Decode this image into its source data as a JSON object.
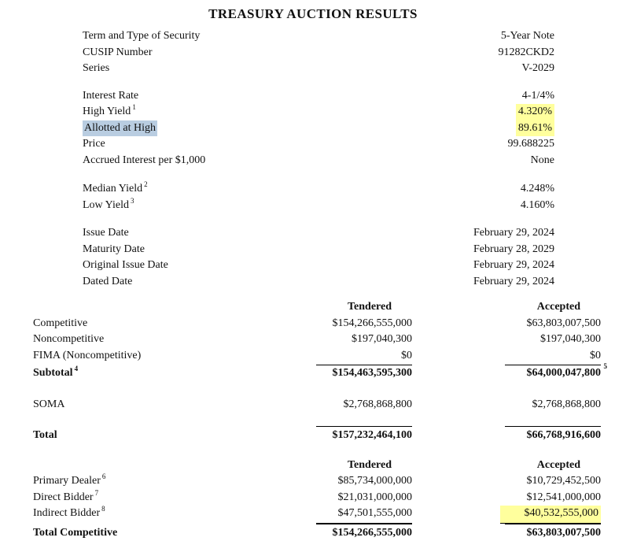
{
  "title": "TREASURY AUCTION RESULTS",
  "colors": {
    "highlight_yellow": "#ffff9d",
    "highlight_blue": "#b9cde1",
    "text": "#111111",
    "background": "#ffffff"
  },
  "security": {
    "rows": [
      {
        "label": "Term and Type of Security",
        "value": "5-Year Note"
      },
      {
        "label": "CUSIP Number",
        "value": "91282CKD2"
      },
      {
        "label": "Series",
        "value": "V-2029"
      }
    ]
  },
  "rates": {
    "rows": [
      {
        "label": "Interest Rate",
        "value": "4-1/4%"
      },
      {
        "label": "High Yield",
        "sup": "1",
        "value": "4.320%"
      },
      {
        "label": "Allotted at High",
        "value": "89.61%"
      },
      {
        "label": "Price",
        "value": "99.688225"
      },
      {
        "label": "Accrued Interest per $1,000",
        "value": "None"
      }
    ]
  },
  "yields": {
    "rows": [
      {
        "label": "Median Yield",
        "sup": "2",
        "value": "4.248%"
      },
      {
        "label": "Low Yield",
        "sup": "3",
        "value": "4.160%"
      }
    ]
  },
  "dates": {
    "rows": [
      {
        "label": "Issue Date",
        "value": "February 29, 2024"
      },
      {
        "label": "Maturity Date",
        "value": "February 28, 2029"
      },
      {
        "label": "Original Issue Date",
        "value": "February 29, 2024"
      },
      {
        "label": "Dated Date",
        "value": "February 29, 2024"
      }
    ]
  },
  "allocation_table": {
    "headers": {
      "tendered": "Tendered",
      "accepted": "Accepted"
    },
    "rows": [
      {
        "label": "Competitive",
        "tendered": "$154,266,555,000",
        "accepted": "$63,803,007,500"
      },
      {
        "label": "Noncompetitive",
        "tendered": "$197,040,300",
        "accepted": "$197,040,300"
      },
      {
        "label": "FIMA (Noncompetitive)",
        "tendered": "$0",
        "accepted": "$0"
      },
      {
        "label": "Subtotal",
        "sup": "4",
        "tendered": "$154,463,595,300",
        "accepted": "$64,000,047,800",
        "accepted_sup": "5"
      },
      {
        "label": "SOMA",
        "tendered": "$2,768,868,800",
        "accepted": "$2,768,868,800"
      },
      {
        "label": "Total",
        "tendered": "$157,232,464,100",
        "accepted": "$66,768,916,600"
      }
    ]
  },
  "bidder_table": {
    "headers": {
      "tendered": "Tendered",
      "accepted": "Accepted"
    },
    "rows": [
      {
        "label": "Primary Dealer",
        "sup": "6",
        "tendered": "$85,734,000,000",
        "accepted": "$10,729,452,500"
      },
      {
        "label": "Direct Bidder",
        "sup": "7",
        "tendered": "$21,031,000,000",
        "accepted": "$12,541,000,000"
      },
      {
        "label": "Indirect Bidder",
        "sup": "8",
        "tendered": "$47,501,555,000",
        "accepted": "$40,532,555,000"
      },
      {
        "label": "Total Competitive",
        "tendered": "$154,266,555,000",
        "accepted": "$63,803,007,500"
      }
    ]
  }
}
